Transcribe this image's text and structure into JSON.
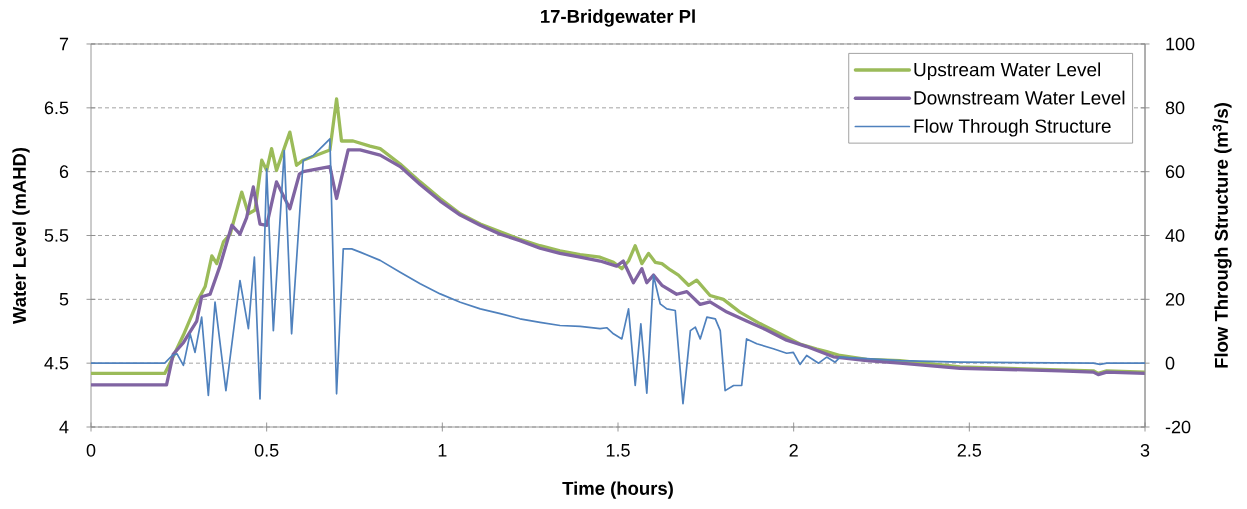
{
  "chart_data": {
    "type": "line",
    "title": "17-Bridgewater Pl",
    "xlabel": "Time (hours)",
    "ylabel": "Water Level (mAHD)",
    "y2label": "Flow Through Structure (m$^{3}$/s)",
    "xlim": [
      0,
      3
    ],
    "xticks": [
      0,
      0.5,
      1,
      1.5,
      2,
      2.5,
      3
    ],
    "ylim": [
      4,
      7
    ],
    "yticks": [
      4,
      4.5,
      5,
      5.5,
      6,
      6.5,
      7
    ],
    "y2lim": [
      -20,
      100
    ],
    "y2ticks": [
      -20,
      0,
      20,
      40,
      60,
      80,
      100
    ],
    "grid": "y",
    "legend": "top right",
    "series": [
      {
        "name": "Upstream Water Level",
        "color": "#9bbb59",
        "x": [
          0,
          0.21,
          0.225,
          0.263,
          0.306,
          0.325,
          0.344,
          0.358,
          0.377,
          0.396,
          0.429,
          0.448,
          0.467,
          0.486,
          0.5,
          0.514,
          0.528,
          0.566,
          0.585,
          0.604,
          0.68,
          0.699,
          0.713,
          0.746,
          0.794,
          0.823,
          0.88,
          0.937,
          0.994,
          1.051,
          1.108,
          1.165,
          1.221,
          1.278,
          1.335,
          1.392,
          1.449,
          1.487,
          1.511,
          1.53,
          1.549,
          1.568,
          1.587,
          1.606,
          1.625,
          1.649,
          1.672,
          1.701,
          1.724,
          1.762,
          1.8,
          1.847,
          1.904,
          1.961,
          2.018,
          2.066,
          2.094,
          2.132,
          2.208,
          2.303,
          2.474,
          2.853,
          2.867,
          2.891,
          3.0
        ],
        "values": [
          4.42,
          4.42,
          4.5,
          4.72,
          5.0,
          5.1,
          5.34,
          5.28,
          5.45,
          5.51,
          5.84,
          5.67,
          5.7,
          6.09,
          6.01,
          6.18,
          6.01,
          6.31,
          6.05,
          6.09,
          6.17,
          6.57,
          6.24,
          6.24,
          6.2,
          6.18,
          6.06,
          5.92,
          5.79,
          5.67,
          5.59,
          5.53,
          5.47,
          5.42,
          5.38,
          5.35,
          5.33,
          5.29,
          5.24,
          5.3,
          5.42,
          5.28,
          5.36,
          5.29,
          5.28,
          5.23,
          5.19,
          5.11,
          5.15,
          5.03,
          5.0,
          4.9,
          4.81,
          4.73,
          4.65,
          4.61,
          4.59,
          4.56,
          4.53,
          4.52,
          4.47,
          4.44,
          4.42,
          4.44,
          4.43
        ]
      },
      {
        "name": "Downstream Water Level",
        "color": "#8064a2",
        "x": [
          0,
          0.215,
          0.234,
          0.263,
          0.301,
          0.315,
          0.339,
          0.367,
          0.401,
          0.424,
          0.443,
          0.462,
          0.481,
          0.5,
          0.528,
          0.566,
          0.593,
          0.604,
          0.68,
          0.699,
          0.732,
          0.766,
          0.823,
          0.88,
          0.937,
          0.994,
          1.051,
          1.108,
          1.165,
          1.221,
          1.278,
          1.335,
          1.392,
          1.449,
          1.496,
          1.515,
          1.544,
          1.568,
          1.582,
          1.601,
          1.625,
          1.667,
          1.696,
          1.734,
          1.762,
          1.81,
          1.866,
          1.923,
          1.98,
          2.037,
          2.113,
          2.208,
          2.303,
          2.474,
          2.758,
          2.853,
          2.867,
          2.891,
          3.0
        ],
        "values": [
          4.33,
          4.33,
          4.57,
          4.66,
          4.83,
          5.02,
          5.04,
          5.26,
          5.58,
          5.51,
          5.64,
          5.88,
          5.59,
          5.58,
          5.92,
          5.71,
          5.98,
          6.0,
          6.04,
          5.79,
          6.17,
          6.17,
          6.13,
          6.04,
          5.9,
          5.77,
          5.66,
          5.58,
          5.51,
          5.46,
          5.4,
          5.36,
          5.33,
          5.3,
          5.26,
          5.3,
          5.13,
          5.24,
          5.13,
          5.19,
          5.11,
          5.04,
          5.06,
          4.96,
          4.98,
          4.9,
          4.83,
          4.76,
          4.68,
          4.63,
          4.55,
          4.52,
          4.5,
          4.46,
          4.44,
          4.43,
          4.41,
          4.43,
          4.42
        ]
      },
      {
        "name": "Flow Through Structure",
        "color": "#4f81bd",
        "axis": "y2",
        "x": [
          0,
          0.21,
          0.231,
          0.245,
          0.263,
          0.282,
          0.296,
          0.315,
          0.334,
          0.353,
          0.384,
          0.424,
          0.448,
          0.465,
          0.481,
          0.5,
          0.519,
          0.55,
          0.571,
          0.604,
          0.633,
          0.68,
          0.699,
          0.718,
          0.742,
          0.766,
          0.823,
          0.88,
          0.937,
          0.994,
          1.051,
          1.108,
          1.165,
          1.221,
          1.278,
          1.335,
          1.392,
          1.449,
          1.468,
          1.487,
          1.511,
          1.53,
          1.549,
          1.565,
          1.582,
          1.601,
          1.62,
          1.639,
          1.663,
          1.685,
          1.706,
          1.72,
          1.734,
          1.753,
          1.777,
          1.791,
          1.805,
          1.829,
          1.852,
          1.866,
          1.895,
          1.942,
          1.98,
          1.999,
          2.018,
          2.037,
          2.071,
          2.094,
          2.118,
          2.132,
          2.208,
          2.303,
          2.474,
          2.853,
          2.872,
          2.891,
          3.0
        ],
        "values": [
          0,
          0,
          2.4,
          2.9,
          -0.7,
          9.2,
          3.4,
          14.4,
          -10.1,
          19.1,
          -8.6,
          25.9,
          10.8,
          33.2,
          -11.2,
          60.9,
          10.2,
          66.6,
          9.2,
          63.5,
          65.1,
          70.3,
          -9.6,
          35.8,
          35.8,
          34.8,
          32.2,
          28.5,
          24.9,
          21.7,
          19.1,
          17.0,
          15.5,
          13.9,
          12.8,
          11.8,
          11.5,
          10.8,
          11.1,
          9.2,
          7.6,
          17.0,
          -7.0,
          12.3,
          -9.4,
          27.5,
          18.6,
          17.0,
          16.5,
          -12.7,
          10.2,
          11.3,
          7.6,
          14.4,
          13.9,
          10.2,
          -8.6,
          -7.0,
          -7.0,
          7.6,
          6.1,
          4.5,
          3.1,
          3.4,
          -0.4,
          2.4,
          0,
          1.9,
          0.3,
          1.9,
          1.4,
          0.8,
          0.3,
          0,
          -0.4,
          0,
          0
        ]
      }
    ]
  }
}
